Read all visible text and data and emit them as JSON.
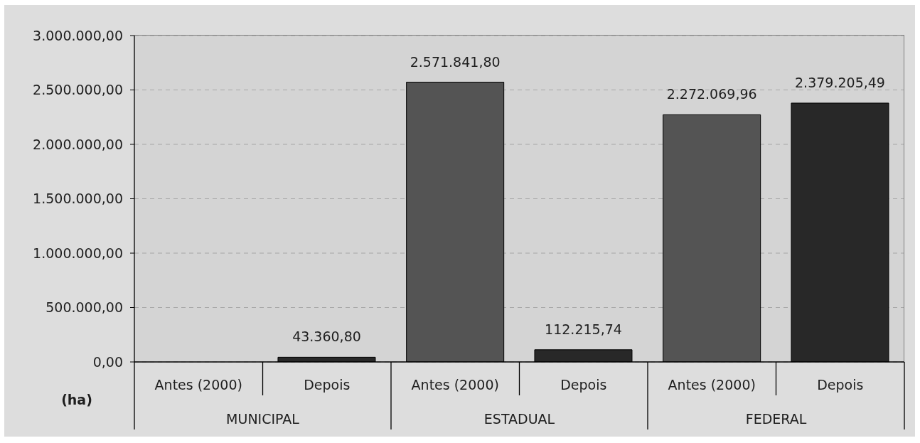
{
  "chart_data": {
    "type": "bar",
    "categories": [
      "MUNICIPAL",
      "ESTADUAL",
      "FEDERAL"
    ],
    "series": [
      {
        "name": "Antes (2000)",
        "color": "#545454",
        "values": [
          null,
          2571841.8,
          2272069.96
        ],
        "value_labels": [
          null,
          "2.571.841,80",
          "2.272.069,96"
        ]
      },
      {
        "name": "Depois",
        "color": "#282828",
        "values": [
          43360.8,
          112215.74,
          2379205.49
        ],
        "value_labels": [
          "43.360,80",
          "112.215,74",
          "2.379.205,49"
        ]
      }
    ],
    "ylabel": "(ha)",
    "ylim": [
      0,
      3000000
    ],
    "yticks": [
      {
        "value": 0,
        "label": "0,00"
      },
      {
        "value": 500000,
        "label": "500.000,00"
      },
      {
        "value": 1000000,
        "label": "1.000.000,00"
      },
      {
        "value": 1500000,
        "label": "1.500.000,00"
      },
      {
        "value": 2000000,
        "label": "2.000.000,00"
      },
      {
        "value": 2500000,
        "label": "2.500.000,00"
      },
      {
        "value": 3000000,
        "label": "3.000.000,00"
      }
    ],
    "grid": "y"
  }
}
